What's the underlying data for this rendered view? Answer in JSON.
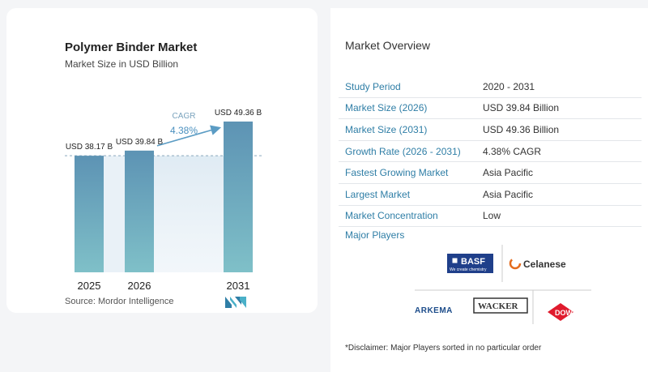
{
  "chart": {
    "title": "Polymer Binder Market",
    "subtitle": "Market Size in USD Billion",
    "source": "Source:  Mordor Intelligence",
    "cagr_label": "CAGR",
    "cagr_value": "4.38%"
  },
  "chart_data": {
    "type": "bar",
    "categories": [
      "2025",
      "2026",
      "2031"
    ],
    "values": [
      38.17,
      39.84,
      49.36
    ],
    "value_labels": [
      "USD 38.17 B",
      "USD 39.84 B",
      "USD 49.36 B"
    ],
    "ylim": [
      0,
      52
    ],
    "colors": {
      "bar_top": "#5d93b4",
      "bar_bottom": "#7fc0c8",
      "arrow": "#5b9cc4",
      "band": "#dce9f2"
    }
  },
  "overview": {
    "title": "Market Overview",
    "rows": [
      {
        "key": "Study Period",
        "value": "2020 - 2031"
      },
      {
        "key": "Market Size (2026)",
        "value": "USD 39.84 Billion"
      },
      {
        "key": "Market Size (2031)",
        "value": "USD 49.36 Billion"
      },
      {
        "key": "Growth Rate (2026 - 2031)",
        "value": "4.38% CAGR"
      },
      {
        "key": "Fastest Growing Market",
        "value": "Asia Pacific"
      },
      {
        "key": "Largest Market",
        "value": "Asia Pacific"
      },
      {
        "key": "Market Concentration",
        "value": "Low"
      }
    ],
    "major_players_title": "Major Players",
    "players": {
      "basf": "BASF",
      "basf_tagline": "We create chemistry",
      "celanese": "Celanese",
      "arkema": "ARKEMA",
      "wacker": "WACKER",
      "dow": "DOW"
    },
    "disclaimer": "*Disclaimer: Major Players sorted in no particular order"
  }
}
